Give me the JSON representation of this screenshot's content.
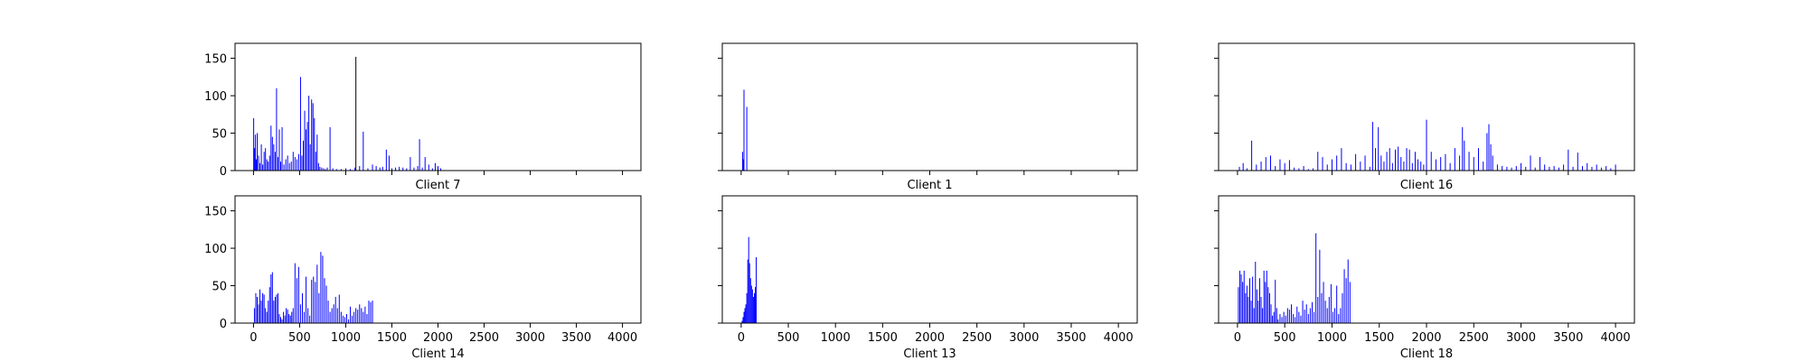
{
  "chart_data": [
    {
      "type": "bar",
      "xlabel": "Client 7",
      "xlim": [
        -200,
        4200
      ],
      "ylim": [
        0,
        170
      ],
      "yticks": [
        0,
        50,
        100,
        150
      ],
      "xticks": [
        0,
        500,
        1000,
        1500,
        2000,
        2500,
        3000,
        3500,
        4000
      ],
      "show_xtick_labels": false,
      "show_ytick_labels": true,
      "x": [
        2,
        10,
        20,
        30,
        40,
        55,
        70,
        85,
        100,
        115,
        130,
        145,
        160,
        175,
        190,
        205,
        220,
        235,
        250,
        265,
        280,
        295,
        310,
        330,
        350,
        370,
        390,
        410,
        430,
        450,
        470,
        490,
        510,
        525,
        540,
        555,
        570,
        585,
        600,
        615,
        630,
        645,
        660,
        675,
        690,
        705,
        720,
        740,
        760,
        780,
        800,
        830,
        860,
        900,
        950,
        1000,
        1050,
        1100,
        1110,
        1150,
        1190,
        1240,
        1290,
        1330,
        1370,
        1400,
        1440,
        1470,
        1500,
        1540,
        1580,
        1620,
        1660,
        1700,
        1740,
        1780,
        1800,
        1830,
        1860,
        1900,
        1940,
        1970,
        2000,
        2030
      ],
      "values": [
        70,
        30,
        48,
        15,
        50,
        20,
        10,
        35,
        8,
        25,
        30,
        15,
        12,
        20,
        60,
        45,
        35,
        25,
        110,
        18,
        55,
        12,
        58,
        8,
        15,
        20,
        10,
        12,
        25,
        18,
        15,
        22,
        125,
        20,
        40,
        80,
        55,
        65,
        100,
        35,
        95,
        90,
        70,
        25,
        48,
        10,
        5,
        4,
        3,
        2,
        4,
        58,
        3,
        2,
        2,
        3,
        2,
        4,
        152,
        6,
        52,
        3,
        8,
        6,
        4,
        5,
        28,
        20,
        3,
        4,
        5,
        4,
        3,
        18,
        4,
        6,
        42,
        4,
        18,
        8,
        3,
        10,
        6,
        3
      ],
      "colors": {
        "bars": "#0000ff",
        "tall_bars": "#000000"
      }
    },
    {
      "type": "bar",
      "xlabel": "Client 1",
      "xlim": [
        -200,
        4200
      ],
      "ylim": [
        0,
        170
      ],
      "yticks": [
        0,
        50,
        100,
        150
      ],
      "xticks": [
        0,
        500,
        1000,
        1500,
        2000,
        2500,
        3000,
        3500,
        4000
      ],
      "show_xtick_labels": false,
      "show_ytick_labels": false,
      "x": [
        15,
        22,
        30,
        60
      ],
      "values": [
        25,
        15,
        108,
        85
      ],
      "colors": {
        "bars": "#0000ff",
        "tall_bars": "#000000"
      }
    },
    {
      "type": "bar",
      "xlabel": "Client 16",
      "xlim": [
        -200,
        4200
      ],
      "ylim": [
        0,
        170
      ],
      "yticks": [
        0,
        50,
        100,
        150
      ],
      "xticks": [
        0,
        500,
        1000,
        1500,
        2000,
        2500,
        3000,
        3500,
        4000
      ],
      "show_xtick_labels": false,
      "show_ytick_labels": false,
      "x": [
        20,
        60,
        100,
        150,
        200,
        250,
        300,
        350,
        400,
        450,
        500,
        550,
        600,
        650,
        700,
        750,
        800,
        850,
        900,
        950,
        1000,
        1050,
        1100,
        1150,
        1200,
        1250,
        1300,
        1350,
        1400,
        1430,
        1460,
        1490,
        1520,
        1550,
        1580,
        1610,
        1640,
        1670,
        1700,
        1730,
        1760,
        1790,
        1820,
        1850,
        1880,
        1910,
        1940,
        1970,
        2000,
        2050,
        2100,
        2150,
        2200,
        2250,
        2300,
        2350,
        2380,
        2400,
        2450,
        2500,
        2550,
        2600,
        2640,
        2660,
        2680,
        2700,
        2750,
        2800,
        2850,
        2900,
        2950,
        3000,
        3050,
        3100,
        3150,
        3200,
        3250,
        3300,
        3350,
        3400,
        3450,
        3500,
        3550,
        3600,
        3650,
        3700,
        3750,
        3800,
        3850,
        3900,
        3950,
        4000
      ],
      "values": [
        5,
        10,
        3,
        40,
        8,
        12,
        18,
        20,
        6,
        15,
        10,
        14,
        4,
        3,
        6,
        2,
        3,
        25,
        18,
        8,
        15,
        20,
        30,
        10,
        8,
        22,
        12,
        20,
        5,
        65,
        30,
        58,
        20,
        12,
        25,
        30,
        10,
        28,
        32,
        18,
        12,
        30,
        28,
        10,
        25,
        15,
        12,
        8,
        68,
        25,
        15,
        18,
        22,
        10,
        30,
        20,
        58,
        40,
        25,
        18,
        30,
        12,
        50,
        62,
        35,
        20,
        8,
        6,
        5,
        4,
        6,
        10,
        5,
        20,
        4,
        18,
        8,
        5,
        6,
        4,
        8,
        28,
        5,
        24,
        6,
        10,
        5,
        8,
        4,
        6,
        3,
        8
      ],
      "colors": {
        "bars": "#0000ff",
        "tall_bars": "#000000"
      }
    },
    {
      "type": "bar",
      "xlabel": "Client 14",
      "xlim": [
        -200,
        4200
      ],
      "ylim": [
        0,
        170
      ],
      "yticks": [
        0,
        50,
        100,
        150
      ],
      "xticks": [
        0,
        500,
        1000,
        1500,
        2000,
        2500,
        3000,
        3500,
        4000
      ],
      "show_xtick_labels": true,
      "show_ytick_labels": true,
      "x": [
        10,
        25,
        40,
        55,
        70,
        85,
        100,
        115,
        130,
        145,
        160,
        175,
        190,
        205,
        220,
        235,
        250,
        265,
        280,
        295,
        310,
        325,
        340,
        355,
        370,
        385,
        400,
        415,
        430,
        450,
        470,
        490,
        510,
        530,
        550,
        570,
        590,
        610,
        630,
        650,
        670,
        690,
        710,
        730,
        750,
        770,
        790,
        810,
        830,
        850,
        870,
        890,
        910,
        930,
        950,
        970,
        990,
        1010,
        1030,
        1050,
        1070,
        1090,
        1110,
        1130,
        1150,
        1170,
        1190,
        1210,
        1230,
        1250,
        1270,
        1290
      ],
      "values": [
        20,
        40,
        35,
        25,
        45,
        30,
        40,
        38,
        20,
        15,
        30,
        48,
        65,
        68,
        30,
        35,
        38,
        40,
        12,
        8,
        5,
        15,
        10,
        20,
        18,
        12,
        10,
        15,
        20,
        80,
        60,
        75,
        25,
        40,
        15,
        62,
        20,
        10,
        58,
        62,
        55,
        78,
        40,
        95,
        90,
        60,
        50,
        30,
        15,
        20,
        25,
        35,
        20,
        38,
        15,
        10,
        8,
        12,
        5,
        22,
        10,
        15,
        20,
        18,
        25,
        20,
        15,
        22,
        12,
        30,
        28,
        30
      ],
      "colors": {
        "bars": "#0000ff",
        "tall_bars": "#000000"
      }
    },
    {
      "type": "bar",
      "xlabel": "Client 13",
      "xlim": [
        -200,
        4200
      ],
      "ylim": [
        0,
        170
      ],
      "yticks": [
        0,
        50,
        100,
        150
      ],
      "xticks": [
        0,
        500,
        1000,
        1500,
        2000,
        2500,
        3000,
        3500,
        4000
      ],
      "show_xtick_labels": true,
      "show_ytick_labels": false,
      "x": [
        10,
        20,
        30,
        40,
        50,
        60,
        70,
        80,
        90,
        100,
        110,
        120,
        130,
        140,
        150,
        160
      ],
      "values": [
        3,
        8,
        15,
        20,
        25,
        40,
        85,
        115,
        80,
        60,
        50,
        45,
        35,
        40,
        48,
        88
      ],
      "colors": {
        "bars": "#0000ff",
        "tall_bars": "#000000"
      }
    },
    {
      "type": "bar",
      "xlabel": "Client 18",
      "xlim": [
        -200,
        4200
      ],
      "ylim": [
        0,
        170
      ],
      "yticks": [
        0,
        50,
        100,
        150
      ],
      "xticks": [
        0,
        500,
        1000,
        1500,
        2000,
        2500,
        3000,
        3500,
        4000
      ],
      "show_xtick_labels": true,
      "show_ytick_labels": false,
      "x": [
        10,
        25,
        40,
        55,
        70,
        85,
        100,
        115,
        130,
        145,
        160,
        175,
        190,
        205,
        220,
        235,
        250,
        265,
        280,
        295,
        310,
        325,
        340,
        355,
        370,
        385,
        400,
        415,
        430,
        450,
        470,
        490,
        510,
        530,
        550,
        570,
        590,
        610,
        630,
        650,
        670,
        690,
        710,
        730,
        750,
        770,
        790,
        810,
        830,
        850,
        870,
        890,
        910,
        930,
        950,
        970,
        990,
        1010,
        1030,
        1050,
        1070,
        1090,
        1110,
        1130,
        1150,
        1170,
        1190
      ],
      "values": [
        48,
        70,
        65,
        55,
        70,
        40,
        50,
        35,
        60,
        30,
        62,
        20,
        82,
        45,
        30,
        60,
        35,
        20,
        70,
        55,
        70,
        48,
        40,
        25,
        10,
        15,
        58,
        20,
        5,
        12,
        8,
        15,
        10,
        20,
        18,
        25,
        12,
        8,
        22,
        15,
        10,
        30,
        18,
        25,
        12,
        20,
        28,
        15,
        120,
        35,
        98,
        40,
        55,
        30,
        20,
        35,
        52,
        15,
        20,
        50,
        12,
        20,
        40,
        72,
        60,
        85,
        55
      ],
      "colors": {
        "bars": "#0000ff",
        "tall_bars": "#000000"
      }
    }
  ]
}
